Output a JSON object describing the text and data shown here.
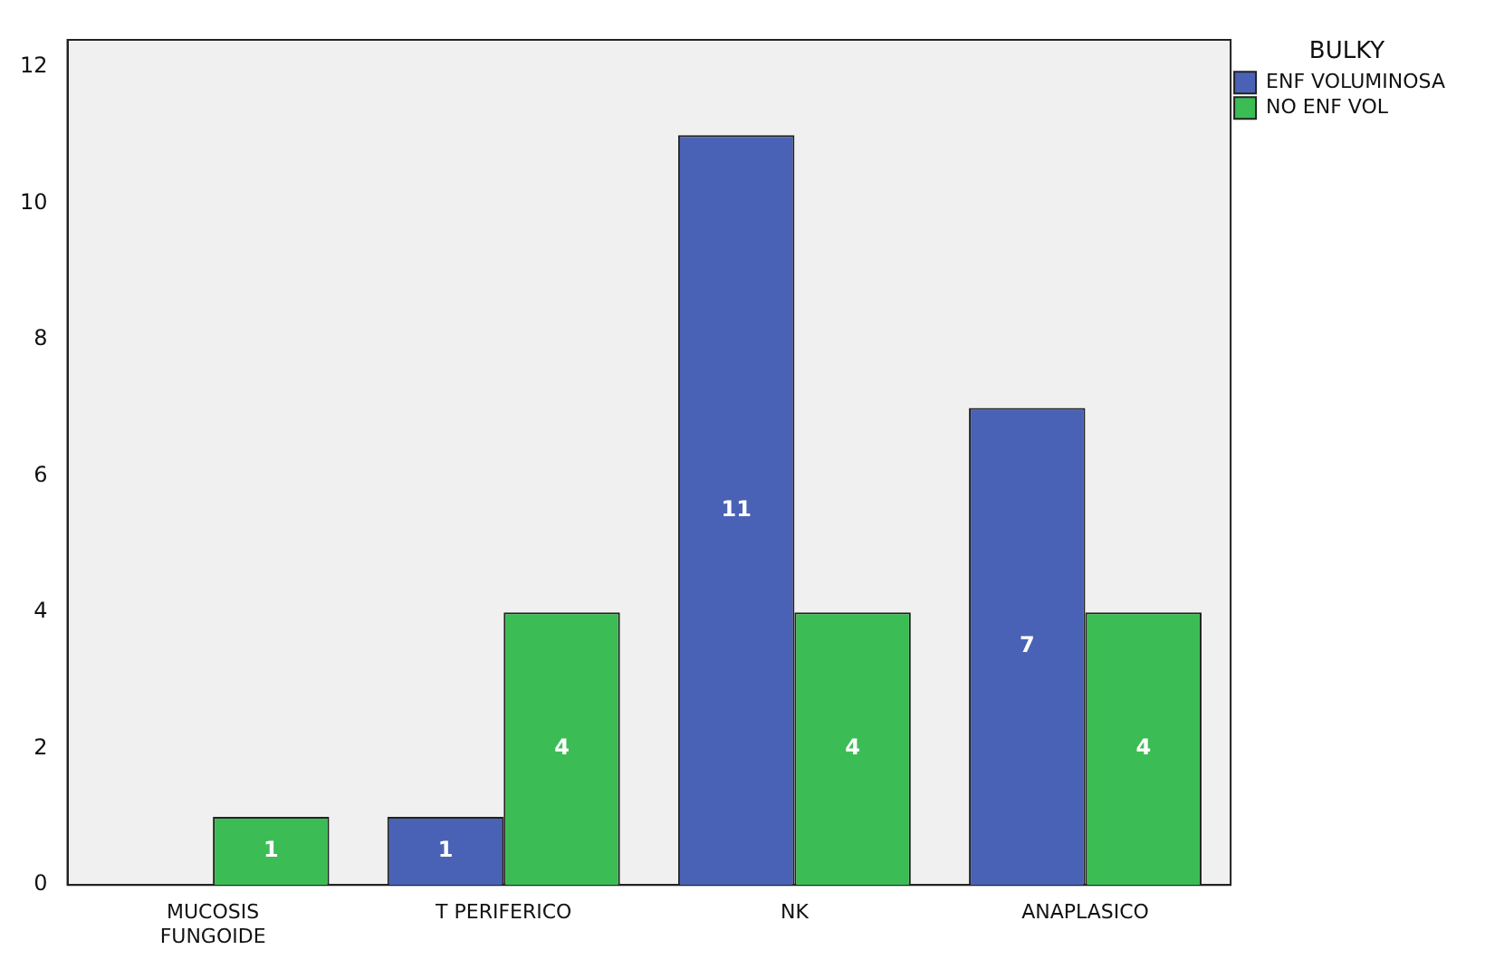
{
  "chart_data": {
    "type": "bar",
    "legend_title": "BULKY",
    "categories": [
      "MUCOSIS FUNGOIDE",
      "T PERIFERICO",
      "NK",
      "ANAPLASICO"
    ],
    "series": [
      {
        "name": "ENF VOLUMINOSA",
        "color": "#4a62b5",
        "values": [
          null,
          1,
          11,
          7
        ]
      },
      {
        "name": "NO ENF VOL",
        "color": "#3cbc54",
        "values": [
          1,
          4,
          4,
          4
        ]
      }
    ],
    "ylim": [
      0,
      12.4
    ],
    "yticks": [
      0,
      2,
      4,
      6,
      8,
      10,
      12
    ],
    "grid": false,
    "legend": "top right",
    "data_labels": true
  }
}
